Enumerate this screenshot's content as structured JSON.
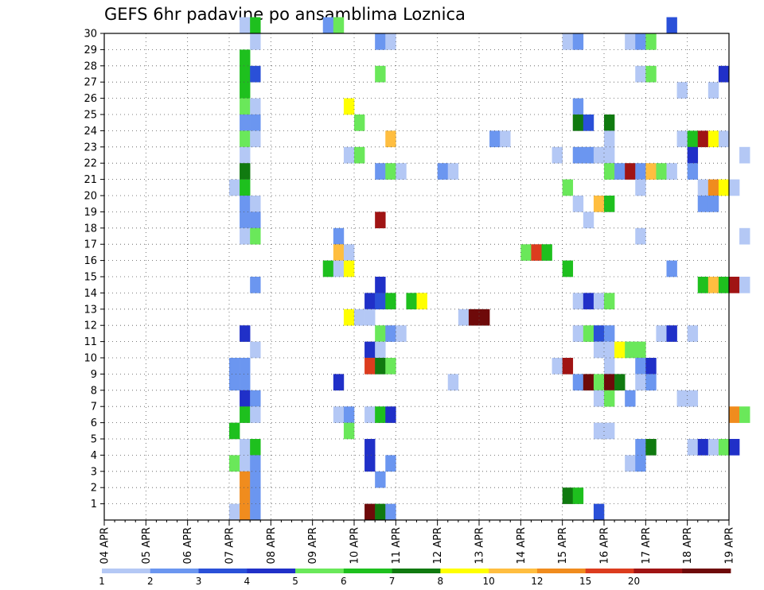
{
  "chart_data": {
    "type": "heatmap",
    "title": "GEFS 6hr padavine po ansamblima Loznica",
    "xlabel": "",
    "ylabel": "",
    "x_tick_labels": [
      "04 APR",
      "05 APR",
      "06 APR",
      "07 APR",
      "08 APR",
      "09 APR",
      "10 APR",
      "11 APR",
      "12 APR",
      "13 APR",
      "14 APR",
      "15 APR",
      "16 APR",
      "17 APR",
      "18 APR",
      "19 APR"
    ],
    "y_tick_labels": [
      "1",
      "2",
      "3",
      "4",
      "5",
      "6",
      "7",
      "8",
      "9",
      "10",
      "11",
      "12",
      "13",
      "14",
      "15",
      "16",
      "17",
      "18",
      "19",
      "20",
      "21",
      "22",
      "23",
      "24",
      "25",
      "26",
      "27",
      "28",
      "29",
      "30"
    ],
    "x_range": [
      "04 APR 00Z",
      "19 APR 00Z"
    ],
    "y_range": [
      0,
      30
    ],
    "step_hours": 6,
    "grid": true,
    "legend": {
      "placement": "bottom",
      "labels": [
        "1",
        "2",
        "3",
        "4",
        "5",
        "6",
        "7",
        "8",
        "10",
        "12",
        "15",
        "20"
      ],
      "colors": [
        "#b4c8f5",
        "#6b96f0",
        "#2a50d8",
        "#2030c8",
        "#6ae85a",
        "#1ec01e",
        "#107a10",
        "#ffff00",
        "#ffbe40",
        "#f08c1e",
        "#dc3c1e",
        "#a01414",
        "#6e0a0a"
      ]
    },
    "x_unit": "6-hour step index from 04 APR 00Z",
    "cells": [
      [
        30,
        13,
        0
      ],
      [
        30,
        14,
        5
      ],
      [
        30,
        21,
        1
      ],
      [
        30,
        22,
        4
      ],
      [
        30,
        54,
        2
      ],
      [
        29,
        14,
        0
      ],
      [
        29,
        26,
        1
      ],
      [
        29,
        27,
        0
      ],
      [
        29,
        44,
        0
      ],
      [
        29,
        45,
        1
      ],
      [
        29,
        50,
        0
      ],
      [
        29,
        51,
        1
      ],
      [
        29,
        52,
        4
      ],
      [
        28,
        13,
        5
      ],
      [
        27,
        13,
        5
      ],
      [
        27,
        14,
        2
      ],
      [
        27,
        26,
        4
      ],
      [
        27,
        51,
        0
      ],
      [
        27,
        52,
        4
      ],
      [
        27,
        59,
        3
      ],
      [
        26,
        13,
        5
      ],
      [
        26,
        55,
        0
      ],
      [
        26,
        58,
        0
      ],
      [
        25,
        13,
        4
      ],
      [
        25,
        14,
        0
      ],
      [
        25,
        23,
        7
      ],
      [
        25,
        45,
        1
      ],
      [
        24,
        13,
        1
      ],
      [
        24,
        14,
        1
      ],
      [
        24,
        24,
        4
      ],
      [
        24,
        45,
        6
      ],
      [
        24,
        46,
        2
      ],
      [
        24,
        48,
        6
      ],
      [
        23,
        13,
        4
      ],
      [
        23,
        14,
        0
      ],
      [
        23,
        27,
        8
      ],
      [
        23,
        37,
        1
      ],
      [
        23,
        38,
        0
      ],
      [
        23,
        48,
        0
      ],
      [
        23,
        55,
        0
      ],
      [
        23,
        56,
        5
      ],
      [
        23,
        57,
        11
      ],
      [
        23,
        58,
        7
      ],
      [
        23,
        59,
        0
      ],
      [
        22,
        13,
        0
      ],
      [
        22,
        23,
        0
      ],
      [
        22,
        24,
        4
      ],
      [
        22,
        43,
        0
      ],
      [
        22,
        45,
        1
      ],
      [
        22,
        46,
        1
      ],
      [
        22,
        47,
        0
      ],
      [
        22,
        48,
        0
      ],
      [
        22,
        56,
        3
      ],
      [
        22,
        61,
        0
      ],
      [
        21,
        13,
        6
      ],
      [
        21,
        26,
        1
      ],
      [
        21,
        27,
        4
      ],
      [
        21,
        28,
        0
      ],
      [
        21,
        32,
        1
      ],
      [
        21,
        33,
        0
      ],
      [
        21,
        48,
        4
      ],
      [
        21,
        49,
        1
      ],
      [
        21,
        50,
        11
      ],
      [
        21,
        51,
        1
      ],
      [
        21,
        52,
        8
      ],
      [
        21,
        53,
        4
      ],
      [
        21,
        54,
        0
      ],
      [
        21,
        56,
        1
      ],
      [
        20,
        12,
        0
      ],
      [
        20,
        13,
        5
      ],
      [
        20,
        44,
        4
      ],
      [
        20,
        51,
        0
      ],
      [
        20,
        57,
        0
      ],
      [
        20,
        58,
        9
      ],
      [
        20,
        59,
        7
      ],
      [
        20,
        60,
        0
      ],
      [
        19,
        13,
        1
      ],
      [
        19,
        14,
        0
      ],
      [
        19,
        45,
        0
      ],
      [
        19,
        47,
        8
      ],
      [
        19,
        48,
        5
      ],
      [
        19,
        57,
        1
      ],
      [
        19,
        58,
        1
      ],
      [
        18,
        13,
        1
      ],
      [
        18,
        14,
        1
      ],
      [
        18,
        26,
        11
      ],
      [
        18,
        46,
        0
      ],
      [
        17,
        13,
        0
      ],
      [
        17,
        14,
        4
      ],
      [
        17,
        22,
        1
      ],
      [
        17,
        51,
        0
      ],
      [
        17,
        61,
        0
      ],
      [
        16,
        22,
        8
      ],
      [
        16,
        23,
        0
      ],
      [
        16,
        40,
        4
      ],
      [
        16,
        41,
        10
      ],
      [
        16,
        42,
        5
      ],
      [
        15,
        21,
        5
      ],
      [
        15,
        22,
        0
      ],
      [
        15,
        23,
        7
      ],
      [
        15,
        44,
        5
      ],
      [
        15,
        54,
        1
      ],
      [
        14,
        14,
        1
      ],
      [
        14,
        26,
        3
      ],
      [
        14,
        57,
        5
      ],
      [
        14,
        58,
        8
      ],
      [
        14,
        59,
        5
      ],
      [
        14,
        60,
        11
      ],
      [
        14,
        61,
        0
      ],
      [
        13,
        25,
        3
      ],
      [
        13,
        26,
        2
      ],
      [
        13,
        27,
        5
      ],
      [
        13,
        29,
        5
      ],
      [
        13,
        30,
        7
      ],
      [
        13,
        45,
        0
      ],
      [
        13,
        46,
        3
      ],
      [
        13,
        47,
        0
      ],
      [
        13,
        48,
        4
      ],
      [
        12,
        23,
        7
      ],
      [
        12,
        24,
        0
      ],
      [
        12,
        25,
        0
      ],
      [
        12,
        34,
        0
      ],
      [
        12,
        35,
        12
      ],
      [
        12,
        36,
        12
      ],
      [
        11,
        13,
        3
      ],
      [
        11,
        26,
        4
      ],
      [
        11,
        27,
        1
      ],
      [
        11,
        28,
        0
      ],
      [
        11,
        45,
        0
      ],
      [
        11,
        46,
        4
      ],
      [
        11,
        47,
        2
      ],
      [
        11,
        48,
        1
      ],
      [
        11,
        53,
        0
      ],
      [
        11,
        54,
        3
      ],
      [
        11,
        56,
        0
      ],
      [
        10,
        14,
        0
      ],
      [
        10,
        25,
        3
      ],
      [
        10,
        26,
        0
      ],
      [
        10,
        47,
        0
      ],
      [
        10,
        48,
        0
      ],
      [
        10,
        49,
        7
      ],
      [
        10,
        50,
        4
      ],
      [
        10,
        51,
        4
      ],
      [
        9,
        12,
        1
      ],
      [
        9,
        13,
        1
      ],
      [
        9,
        25,
        10
      ],
      [
        9,
        26,
        6
      ],
      [
        9,
        27,
        4
      ],
      [
        9,
        43,
        0
      ],
      [
        9,
        44,
        11
      ],
      [
        9,
        48,
        0
      ],
      [
        9,
        51,
        1
      ],
      [
        9,
        52,
        3
      ],
      [
        8,
        12,
        1
      ],
      [
        8,
        13,
        1
      ],
      [
        8,
        22,
        3
      ],
      [
        8,
        33,
        0
      ],
      [
        8,
        45,
        1
      ],
      [
        8,
        46,
        12
      ],
      [
        8,
        47,
        4
      ],
      [
        8,
        48,
        12
      ],
      [
        8,
        49,
        6
      ],
      [
        8,
        51,
        0
      ],
      [
        8,
        52,
        1
      ],
      [
        7,
        13,
        3
      ],
      [
        7,
        14,
        1
      ],
      [
        7,
        47,
        0
      ],
      [
        7,
        48,
        4
      ],
      [
        7,
        50,
        1
      ],
      [
        7,
        55,
        0
      ],
      [
        7,
        56,
        0
      ],
      [
        6,
        13,
        5
      ],
      [
        6,
        14,
        0
      ],
      [
        6,
        22,
        0
      ],
      [
        6,
        23,
        1
      ],
      [
        6,
        25,
        0
      ],
      [
        6,
        26,
        5
      ],
      [
        6,
        27,
        3
      ],
      [
        6,
        60,
        9
      ],
      [
        6,
        61,
        4
      ],
      [
        5,
        12,
        5
      ],
      [
        5,
        23,
        4
      ],
      [
        5,
        47,
        0
      ],
      [
        5,
        48,
        0
      ],
      [
        4,
        13,
        0
      ],
      [
        4,
        14,
        5
      ],
      [
        4,
        25,
        3
      ],
      [
        4,
        51,
        1
      ],
      [
        4,
        52,
        6
      ],
      [
        4,
        56,
        0
      ],
      [
        4,
        57,
        3
      ],
      [
        4,
        58,
        0
      ],
      [
        4,
        59,
        4
      ],
      [
        4,
        60,
        3
      ],
      [
        3,
        12,
        4
      ],
      [
        3,
        13,
        0
      ],
      [
        3,
        14,
        1
      ],
      [
        3,
        25,
        3
      ],
      [
        3,
        27,
        1
      ],
      [
        3,
        50,
        0
      ],
      [
        3,
        51,
        1
      ],
      [
        2,
        13,
        9
      ],
      [
        2,
        14,
        1
      ],
      [
        2,
        26,
        1
      ],
      [
        1,
        13,
        9
      ],
      [
        1,
        14,
        1
      ],
      [
        1,
        44,
        6
      ],
      [
        1,
        45,
        5
      ],
      [
        0,
        12,
        0
      ],
      [
        0,
        13,
        9
      ],
      [
        0,
        14,
        1
      ],
      [
        0,
        25,
        12
      ],
      [
        0,
        26,
        6
      ],
      [
        0,
        27,
        1
      ],
      [
        0,
        47,
        2
      ]
    ]
  }
}
